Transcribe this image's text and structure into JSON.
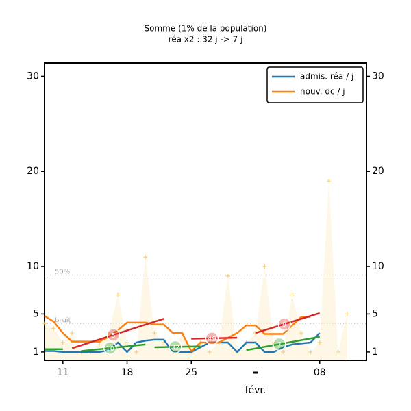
{
  "chart_data": {
    "type": "line",
    "title": "Somme (1% de la population)",
    "subtitle": "réa x2 : 32 j -> 7 j",
    "xlim": [
      9,
      44.1
    ],
    "xticks": [
      11,
      18,
      25,
      {
        "value": 39,
        "label": "08"
      }
    ],
    "x_month_label": {
      "value": 32,
      "label": "févr."
    },
    "ylim": [
      0.13,
      31.4
    ],
    "yticks": [
      1,
      5,
      10,
      20,
      30
    ],
    "legend": "upper right",
    "reference_lines": [
      {
        "value": 9.1,
        "label": "50%"
      },
      {
        "value": 4.0,
        "label": "bruit"
      }
    ],
    "noise": {
      "color": "#fde9b8",
      "x": [
        9,
        10,
        11,
        12,
        13,
        14,
        15,
        16,
        17,
        18,
        19,
        20,
        21,
        22,
        23,
        24,
        25,
        26,
        27,
        28,
        29,
        30,
        31,
        32,
        33,
        34,
        35,
        36,
        37,
        38,
        39,
        40,
        41,
        42
      ],
      "values": [
        4,
        3.5,
        2,
        3,
        1,
        1,
        2,
        3,
        7,
        2,
        1,
        11,
        3,
        2,
        1,
        3,
        1,
        2,
        1,
        2,
        9,
        1,
        2,
        3,
        10,
        2,
        1,
        7,
        3,
        1,
        2,
        19,
        1,
        5
      ]
    },
    "series": [
      {
        "name": "admis. réa / j",
        "color": "#1f77b4",
        "x": [
          9,
          10,
          11,
          12,
          13,
          14,
          15,
          16,
          17,
          18,
          19,
          20,
          21,
          22,
          23,
          24,
          25,
          26,
          27,
          28,
          29,
          30,
          31,
          32,
          33,
          34,
          35,
          36,
          37,
          38,
          39
        ],
        "values": [
          1.1,
          1.1,
          1,
          1,
          1,
          1,
          1,
          1.2,
          2,
          1,
          2,
          2.2,
          2.3,
          2.3,
          1,
          1,
          1,
          1.5,
          2,
          2,
          2,
          1,
          2,
          2,
          1,
          1,
          1.5,
          1.8,
          1.9,
          2,
          3
        ]
      },
      {
        "name": "nouv. dc / j",
        "color": "#ff7f0e",
        "x": [
          9,
          10,
          11,
          12,
          13,
          14,
          15,
          16,
          17,
          18,
          19,
          20,
          21,
          22,
          23,
          24,
          25,
          26,
          27,
          28,
          29,
          30,
          31,
          32,
          33,
          34,
          35,
          36,
          37,
          38
        ],
        "values": [
          4.8,
          4.2,
          3,
          2.1,
          2.1,
          2.1,
          2.1,
          2.6,
          3.3,
          4.1,
          4.1,
          4.1,
          3.9,
          3.9,
          3,
          3,
          1.1,
          2,
          2,
          2,
          2.5,
          3,
          3.8,
          3.8,
          2.9,
          2.9,
          2.9,
          3.8,
          4.7,
          4.7
        ]
      }
    ],
    "trends": [
      {
        "color": "#2ca02c",
        "x": [
          9,
          11
        ],
        "values": [
          1.3,
          1.3
        ]
      },
      {
        "color": "#2ca02c",
        "x": [
          13,
          20
        ],
        "values": [
          1.1,
          1.8
        ],
        "label": "10"
      },
      {
        "color": "#2ca02c",
        "x": [
          21,
          26
        ],
        "values": [
          1.5,
          1.6
        ],
        "label": "32"
      },
      {
        "color": "#2ca02c",
        "x": [
          31,
          39
        ],
        "values": [
          1.2,
          2.6
        ],
        "label": "7"
      },
      {
        "color": "#d62728",
        "x": [
          12,
          22
        ],
        "values": [
          1.4,
          4.5
        ],
        "label": "5"
      },
      {
        "color": "#d62728",
        "x": [
          25,
          30
        ],
        "values": [
          2.4,
          2.5
        ],
        "label": "49"
      },
      {
        "color": "#d62728",
        "x": [
          32,
          39
        ],
        "values": [
          3,
          5.1
        ],
        "label": "9"
      }
    ]
  }
}
